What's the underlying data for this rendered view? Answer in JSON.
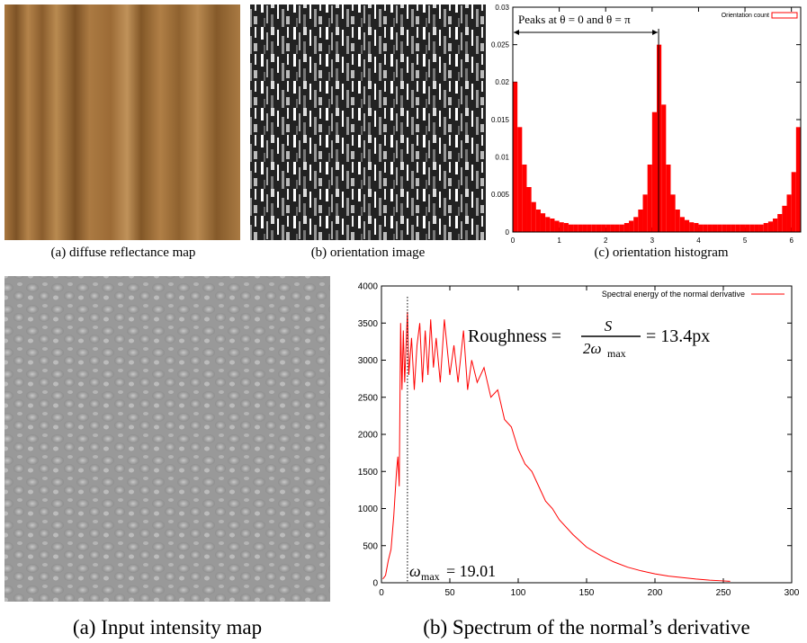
{
  "figure": {
    "top_captions": [
      "(a) diffuse reflectance map",
      "(b) orientation image",
      "(c) orientation histogram"
    ],
    "bottom_captions": [
      "(a) Input intensity map",
      "(b) Spectrum of the normal’s derivative"
    ]
  },
  "chart_data": [
    {
      "type": "histogram",
      "legend": "Orientation count",
      "legend_position": "top-right",
      "color": "#ff0000",
      "annotation": "Peaks at θ = 0 and θ = π",
      "vline": 3.14,
      "bins": [
        0,
        0.1,
        0.2,
        0.3,
        0.4,
        0.5,
        0.6,
        0.7,
        0.8,
        0.9,
        1.0,
        1.1,
        1.2,
        1.3,
        1.4,
        1.5,
        1.6,
        1.7,
        1.8,
        1.9,
        2.0,
        2.1,
        2.2,
        2.3,
        2.4,
        2.5,
        2.6,
        2.7,
        2.8,
        2.9,
        3.0,
        3.1,
        3.2,
        3.3,
        3.4,
        3.5,
        3.6,
        3.7,
        3.8,
        3.9,
        4.0,
        4.1,
        4.2,
        4.3,
        4.4,
        4.5,
        4.6,
        4.7,
        4.8,
        4.9,
        5.0,
        5.1,
        5.2,
        5.3,
        5.4,
        5.5,
        5.6,
        5.7,
        5.8,
        5.9,
        6.0,
        6.1,
        6.2
      ],
      "values": [
        0.02,
        0.014,
        0.009,
        0.006,
        0.004,
        0.003,
        0.0025,
        0.002,
        0.0018,
        0.0015,
        0.0013,
        0.0012,
        0.001,
        0.001,
        0.001,
        0.001,
        0.001,
        0.001,
        0.001,
        0.001,
        0.001,
        0.001,
        0.001,
        0.001,
        0.0012,
        0.0015,
        0.002,
        0.003,
        0.005,
        0.009,
        0.016,
        0.025,
        0.017,
        0.009,
        0.005,
        0.003,
        0.002,
        0.0016,
        0.0013,
        0.0012,
        0.001,
        0.001,
        0.001,
        0.001,
        0.001,
        0.001,
        0.001,
        0.001,
        0.001,
        0.001,
        0.001,
        0.001,
        0.001,
        0.001,
        0.0012,
        0.0014,
        0.0018,
        0.0024,
        0.0035,
        0.005,
        0.008,
        0.014
      ],
      "xlim": [
        0,
        6.2
      ],
      "xticks": [
        0,
        1,
        2,
        3,
        4,
        5,
        6
      ],
      "ylim": [
        0,
        0.03
      ],
      "yticks": [
        0,
        0.005,
        0.01,
        0.015,
        0.02,
        0.025,
        0.03
      ]
    },
    {
      "type": "line",
      "color": "#ff0000",
      "legend_position": "top-right",
      "vline": 19.01,
      "series": [
        {
          "name": "Spectral energy of the normal derivative",
          "color": "#ff0000",
          "x": [
            1,
            3,
            5,
            7,
            9,
            11,
            12,
            13,
            14,
            15,
            16,
            17,
            18,
            19,
            20,
            22,
            24,
            26,
            28,
            30,
            32,
            34,
            36,
            38,
            40,
            43,
            46,
            50,
            53,
            56,
            60,
            63,
            66,
            70,
            75,
            80,
            85,
            90,
            95,
            100,
            105,
            110,
            115,
            120,
            125,
            130,
            140,
            150,
            160,
            170,
            180,
            190,
            200,
            210,
            220,
            230,
            240,
            250,
            255
          ],
          "values": [
            50,
            100,
            300,
            450,
            900,
            1500,
            1700,
            1300,
            3500,
            2600,
            3400,
            2700,
            3200,
            3650,
            2800,
            3300,
            2600,
            3200,
            3500,
            2700,
            3400,
            2800,
            3550,
            2900,
            3300,
            2700,
            3550,
            2800,
            3200,
            2700,
            3400,
            2600,
            3000,
            2700,
            2900,
            2500,
            2600,
            2200,
            2100,
            1800,
            1600,
            1500,
            1300,
            1100,
            1000,
            850,
            650,
            480,
            370,
            280,
            210,
            160,
            120,
            90,
            70,
            50,
            35,
            25,
            20
          ]
        }
      ],
      "roughness": {
        "label": "Roughness =",
        "numerator": "S",
        "denominator": "2ω",
        "subscript": "max",
        "result": "= 13.4px"
      },
      "omega": {
        "symbol": "ω",
        "subscript": "max",
        "value_text": "= 19.01"
      },
      "xlim": [
        0,
        300
      ],
      "xticks": [
        0,
        50,
        100,
        150,
        200,
        250,
        300
      ],
      "ylim": [
        0,
        4000
      ],
      "yticks": [
        0,
        500,
        1000,
        1500,
        2000,
        2500,
        3000,
        3500,
        4000
      ]
    }
  ]
}
